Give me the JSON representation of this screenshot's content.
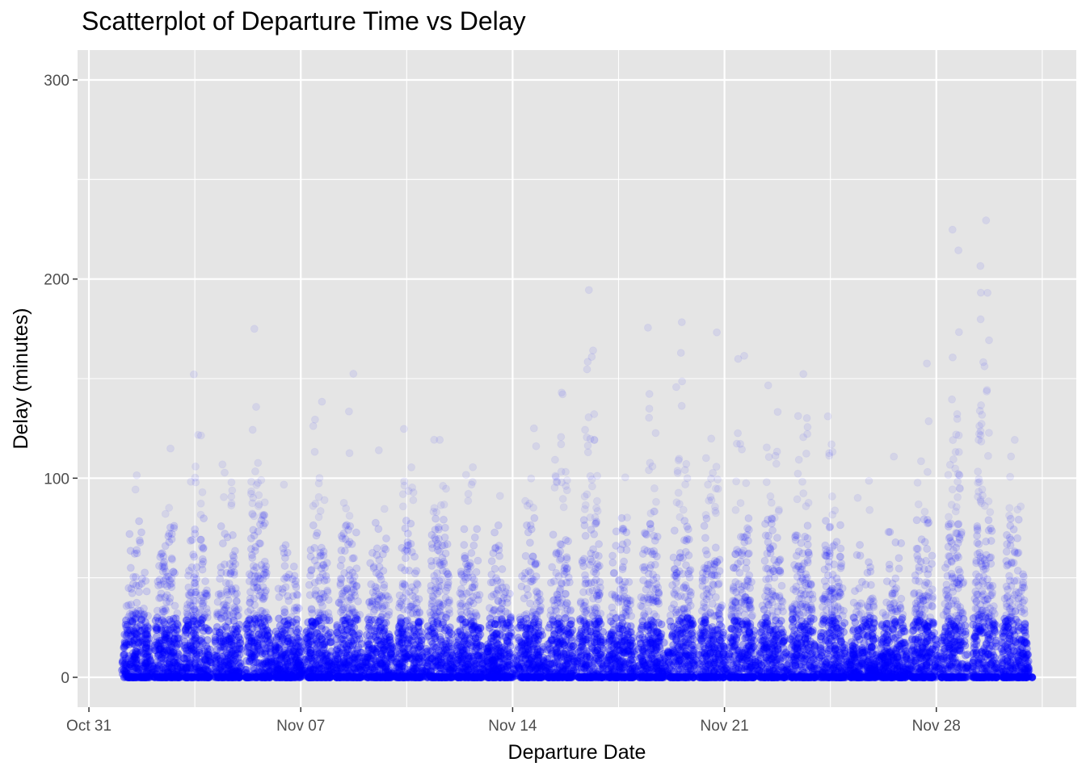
{
  "chart_data": {
    "type": "scatter",
    "title": "Scatterplot of Departure Time vs Delay",
    "xlabel": "Departure Date",
    "ylabel": "Delay (minutes)",
    "x_type": "datetime",
    "xlim": [
      "2023-10-30T15:00",
      "2023-12-02T15:00"
    ],
    "ylim": [
      -15,
      315
    ],
    "x_ticks": [
      {
        "label": "Oct 31",
        "value": "2023-10-31"
      },
      {
        "label": "Nov 07",
        "value": "2023-11-07"
      },
      {
        "label": "Nov 14",
        "value": "2023-11-14"
      },
      {
        "label": "Nov 21",
        "value": "2023-11-21"
      },
      {
        "label": "Nov 28",
        "value": "2023-11-28"
      }
    ],
    "y_ticks": [
      {
        "label": "0",
        "value": 0
      },
      {
        "label": "100",
        "value": 100
      },
      {
        "label": "200",
        "value": 200
      },
      {
        "label": "300",
        "value": 300
      }
    ],
    "grid": true,
    "background_color": "#e5e5e5",
    "grid_color": "#ffffff",
    "point_color": "#0000ff",
    "point_alpha": 0.05,
    "x_start": "2023-11-01T04:00",
    "x_end": "2023-12-01T04:00",
    "series": [
      {
        "description": "daily clusters of departures; per-day 90th-percentile delay (approx.) in minutes",
        "x": [
          "2023-11-01",
          "2023-11-02",
          "2023-11-03",
          "2023-11-04",
          "2023-11-05",
          "2023-11-06",
          "2023-11-07",
          "2023-11-08",
          "2023-11-09",
          "2023-11-10",
          "2023-11-11",
          "2023-11-12",
          "2023-11-13",
          "2023-11-14",
          "2023-11-15",
          "2023-11-16",
          "2023-11-17",
          "2023-11-18",
          "2023-11-19",
          "2023-11-20",
          "2023-11-21",
          "2023-11-22",
          "2023-11-23",
          "2023-11-24",
          "2023-11-25",
          "2023-11-26",
          "2023-11-27",
          "2023-11-28",
          "2023-11-29",
          "2023-11-30"
        ],
        "y": [
          45,
          50,
          55,
          55,
          60,
          40,
          55,
          55,
          45,
          55,
          60,
          55,
          40,
          45,
          60,
          80,
          45,
          65,
          70,
          65,
          70,
          60,
          65,
          55,
          35,
          40,
          55,
          80,
          90,
          60
        ]
      }
    ]
  }
}
